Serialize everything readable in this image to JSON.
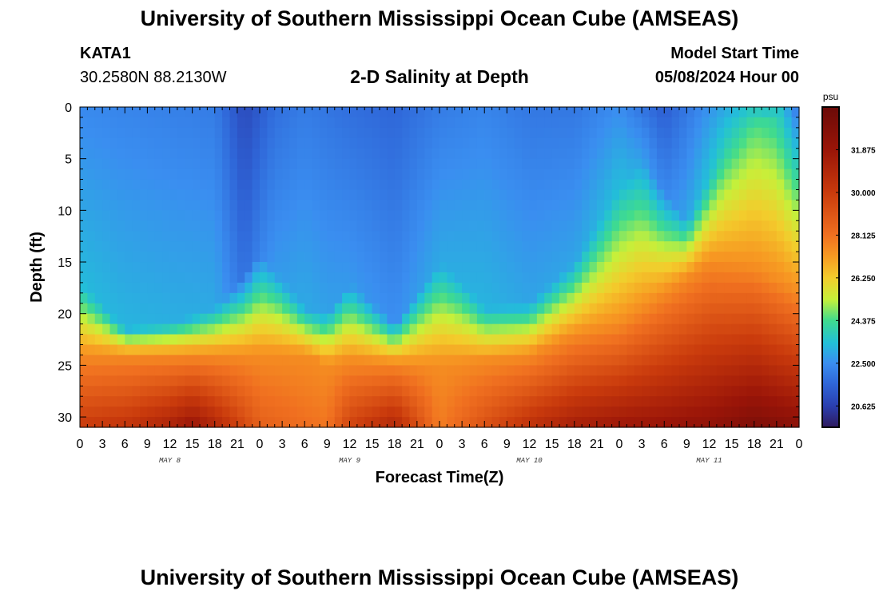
{
  "header": {
    "title": "University of Southern Mississippi Ocean Cube (AMSEAS)",
    "station_id": "KATA1",
    "station_location": "30.2580N  88.2130W",
    "subtitle": "2-D Salinity at Depth",
    "model_start_label": "Model Start Time",
    "model_start_value": "05/08/2024 Hour 00"
  },
  "footer": {
    "title": "University of Southern Mississippi Ocean Cube (AMSEAS)"
  },
  "chart_data": {
    "type": "heatmap",
    "title": "2-D Salinity at Depth",
    "xlabel": "Forecast Time(Z)",
    "ylabel": "Depth (ft)",
    "x_range": [
      0,
      96
    ],
    "y_range": [
      0,
      31
    ],
    "y_inverted": true,
    "x_tick_labels": [
      "0",
      "3",
      "6",
      "9",
      "12",
      "15",
      "18",
      "21",
      "0",
      "3",
      "6",
      "9",
      "12",
      "15",
      "18",
      "21",
      "0",
      "3",
      "6",
      "9",
      "12",
      "15",
      "18",
      "21",
      "0",
      "3",
      "6",
      "9",
      "12",
      "15",
      "18",
      "21",
      "0"
    ],
    "y_tick_labels": [
      "0",
      "5",
      "10",
      "15",
      "20",
      "25",
      "30"
    ],
    "y_tick_values": [
      0,
      5,
      10,
      15,
      20,
      25,
      30
    ],
    "day_labels": [
      "MAY 8",
      "MAY 9",
      "MAY 10",
      "MAY 11"
    ],
    "colorbar": {
      "unit": "psu",
      "min": 19.6875,
      "max": 33.75,
      "tick_values": [
        20.625,
        22.5,
        24.375,
        26.25,
        28.125,
        30.0,
        31.875
      ],
      "tick_labels": [
        "20.625",
        "22.500",
        "24.375",
        "26.250",
        "28.125",
        "30.000",
        "31.875"
      ],
      "stops": [
        [
          19.6875,
          "#2e1a5e"
        ],
        [
          20.625,
          "#2a3fb0"
        ],
        [
          21.6,
          "#2f66d8"
        ],
        [
          22.5,
          "#3a8ef0"
        ],
        [
          23.4,
          "#22c0d8"
        ],
        [
          24.375,
          "#3fdb8e"
        ],
        [
          25.3,
          "#c6f03a"
        ],
        [
          26.25,
          "#f3cc2c"
        ],
        [
          27.2,
          "#f79a22"
        ],
        [
          28.125,
          "#f07020"
        ],
        [
          30.0,
          "#c93a0c"
        ],
        [
          31.875,
          "#9a1508"
        ],
        [
          33.75,
          "#6b0a08"
        ]
      ]
    },
    "halocline_depth_ft": {
      "hours": [
        0,
        6,
        12,
        18,
        21,
        24,
        30,
        33,
        36,
        42,
        48,
        51,
        54,
        60,
        66,
        72,
        75,
        78,
        81,
        84,
        86,
        90,
        93,
        96
      ],
      "values": [
        17,
        21.5,
        21,
        19.5,
        17,
        14,
        19.5,
        20,
        17,
        21,
        15,
        17,
        19.5,
        19,
        15,
        8,
        5,
        8,
        11,
        7,
        4,
        2,
        0.5,
        0
      ]
    },
    "surface_salinity_psu": {
      "hours": [
        0,
        18,
        22,
        26,
        30,
        36,
        42,
        48,
        54,
        60,
        66,
        72,
        78,
        84,
        90,
        93,
        96
      ],
      "values": [
        22.4,
        22.1,
        20.9,
        21.8,
        22.1,
        21.8,
        21.6,
        22.1,
        22.3,
        22.0,
        22.0,
        22.5,
        21.4,
        22.6,
        23.6,
        23.0,
        21.0
      ]
    },
    "bottom_salinity_psu": {
      "hours": [
        0,
        6,
        12,
        15,
        18,
        24,
        30,
        33,
        36,
        42,
        48,
        54,
        60,
        66,
        72,
        78,
        84,
        90,
        96
      ],
      "values": [
        30.0,
        30.3,
        31.2,
        32.0,
        31.0,
        28.7,
        28.2,
        28.0,
        29.7,
        31.0,
        27.8,
        29.2,
        30.5,
        31.4,
        31.8,
        32.0,
        32.3,
        33.0,
        32.5
      ]
    },
    "surface_bottom_depth_ft": {
      "hours": [
        0,
        30,
        33,
        36,
        48,
        60,
        66,
        72,
        78,
        84,
        90,
        96
      ],
      "values": [
        24,
        24,
        25,
        24.5,
        25,
        24,
        22,
        21,
        18,
        15,
        15.5,
        18
      ]
    }
  }
}
